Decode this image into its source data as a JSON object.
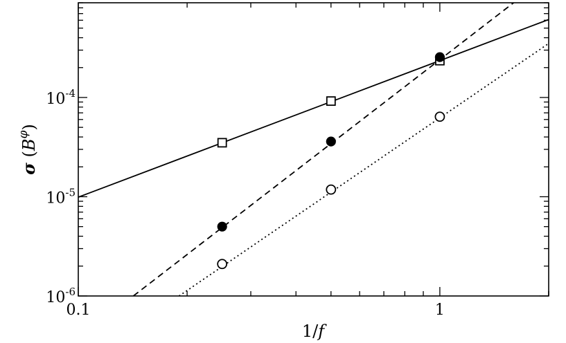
{
  "chart_data": {
    "type": "scatter",
    "xscale": "log",
    "yscale": "log",
    "xlim": [
      0.1,
      2.0
    ],
    "ylim": [
      1e-06,
      0.0009
    ],
    "xlabel": "1/f",
    "ylabel": "σ (B^φ)",
    "grid": false,
    "x_tick_labels": [
      {
        "value": 0.1,
        "label": "0.1"
      },
      {
        "value": 1,
        "label": "1"
      }
    ],
    "y_tick_labels": [
      {
        "value": 1e-06,
        "base": "10",
        "exp": "-6"
      },
      {
        "value": 1e-05,
        "base": "10",
        "exp": "-5"
      },
      {
        "value": 0.0001,
        "base": "10",
        "exp": "-4"
      }
    ],
    "series": [
      {
        "marker": "open-square",
        "line": "solid",
        "points": [
          {
            "x": 0.25,
            "y": 3.5e-05
          },
          {
            "x": 0.5,
            "y": 9.2e-05
          },
          {
            "x": 1.0,
            "y": 0.000235
          }
        ],
        "fit": [
          {
            "x": 0.1,
            "y": 9.9e-06
          },
          {
            "x": 2.0,
            "y": 0.00061
          }
        ]
      },
      {
        "marker": "filled-circle",
        "line": "dashed",
        "points": [
          {
            "x": 0.25,
            "y": 5e-06
          },
          {
            "x": 0.5,
            "y": 3.6e-05
          },
          {
            "x": 1.0,
            "y": 0.000255
          }
        ],
        "fit": [
          {
            "x": 0.142,
            "y": 1e-06
          },
          {
            "x": 1.6,
            "y": 0.0009
          }
        ]
      },
      {
        "marker": "open-circle",
        "line": "dotted",
        "points": [
          {
            "x": 0.25,
            "y": 2.1e-06
          },
          {
            "x": 0.5,
            "y": 1.18e-05
          },
          {
            "x": 1.0,
            "y": 6.4e-05
          }
        ],
        "fit": [
          {
            "x": 0.19,
            "y": 1e-06
          },
          {
            "x": 2.0,
            "y": 0.00035
          }
        ]
      }
    ]
  }
}
